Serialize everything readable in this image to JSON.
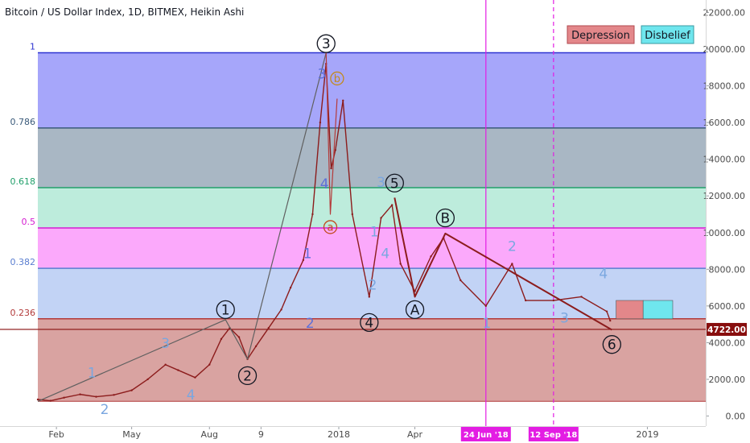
{
  "header": {
    "title": "Bitcoin / US Dollar Index, 1D, BITMEX, Heikin Ashi"
  },
  "legend": {
    "items": [
      {
        "label": "Depression",
        "color": "#e3878a",
        "border": "#b24a4f"
      },
      {
        "label": "Disbelief",
        "color": "#6fe6ee",
        "border": "#3a9aa0"
      }
    ]
  },
  "price_tag": {
    "label": "4722.00",
    "value": 4722,
    "color": "#880e0e"
  },
  "time_markers": [
    {
      "label": "24 Jun '18",
      "date": "2018-06-24",
      "style": "solid",
      "color": "#e31de3"
    },
    {
      "label": "12 Sep '18",
      "date": "2018-09-12",
      "style": "dashed",
      "color": "#e31de3"
    }
  ],
  "chart_data": {
    "type": "line",
    "title": "Bitcoin / US Dollar Index, 1D, BITMEX, Heikin Ashi",
    "xlabel": "",
    "ylabel": "",
    "grid": false,
    "ylim": [
      0,
      22000
    ],
    "xlim": [
      "2017-01-01",
      "2019-03-01"
    ],
    "y_ticks": [
      "22000.00",
      "20000.00",
      "18000.00",
      "16000.00",
      "14000.00",
      "12000.00",
      "10000.00",
      "8000.00",
      "6000.00",
      "4000.00",
      "2000.00",
      "0.00"
    ],
    "x_ticks": [
      {
        "label": "Feb",
        "date": "2017-02-01"
      },
      {
        "label": "May",
        "date": "2017-05-01"
      },
      {
        "label": "Aug",
        "date": "2017-08-01"
      },
      {
        "label": "9",
        "date": "2017-10-01"
      },
      {
        "label": "2018",
        "date": "2018-01-01"
      },
      {
        "label": "Apr",
        "date": "2018-04-01"
      },
      {
        "label": "2019",
        "date": "2019-01-01"
      }
    ],
    "fib_levels": [
      {
        "label": "1",
        "price": 19800,
        "color": "#2e34d1",
        "fill": "#a6a6fa"
      },
      {
        "label": "0.786",
        "price": 15700,
        "color": "#3a5a7a",
        "fill": "#a9b7c4"
      },
      {
        "label": "0.618",
        "price": 12450,
        "color": "#22a06b",
        "fill": "#bdecdc"
      },
      {
        "label": "0.5",
        "price": 10250,
        "color": "#d51dd1",
        "fill": "#fba9fb"
      },
      {
        "label": "0.382",
        "price": 8050,
        "color": "#5a7ed0",
        "fill": "#c2d3f5"
      },
      {
        "label": "0.236",
        "price": 5300,
        "color": "#b23a3a",
        "fill": "#d9a3a1"
      }
    ],
    "fib_floor": 800,
    "series": [
      {
        "name": "",
        "color": "#8c1c1c",
        "points": [
          [
            "2017-01-10",
            900
          ],
          [
            "2017-01-25",
            830
          ],
          [
            "2017-02-10",
            1000
          ],
          [
            "2017-03-01",
            1180
          ],
          [
            "2017-03-20",
            1050
          ],
          [
            "2017-04-10",
            1150
          ],
          [
            "2017-05-01",
            1400
          ],
          [
            "2017-05-20",
            2000
          ],
          [
            "2017-06-10",
            2800
          ],
          [
            "2017-06-25",
            2500
          ],
          [
            "2017-07-15",
            2100
          ],
          [
            "2017-08-01",
            2800
          ],
          [
            "2017-08-15",
            4200
          ],
          [
            "2017-08-25",
            4800
          ],
          [
            "2017-09-05",
            4300
          ],
          [
            "2017-09-15",
            3100
          ],
          [
            "2017-09-25",
            3800
          ],
          [
            "2017-10-10",
            4800
          ],
          [
            "2017-10-25",
            5800
          ],
          [
            "2017-11-05",
            7000
          ],
          [
            "2017-11-20",
            8500
          ],
          [
            "2017-12-01",
            11000
          ],
          [
            "2017-12-10",
            16000
          ],
          [
            "2017-12-17",
            19200
          ],
          [
            "2017-12-23",
            13500
          ],
          [
            "2017-12-28",
            14500
          ],
          [
            "2018-01-06",
            17200
          ],
          [
            "2018-01-17",
            11000
          ],
          [
            "2018-02-06",
            6500
          ],
          [
            "2018-02-20",
            10800
          ],
          [
            "2018-03-05",
            11500
          ],
          [
            "2018-03-15",
            8300
          ],
          [
            "2018-04-01",
            6800
          ],
          [
            "2018-04-20",
            8700
          ],
          [
            "2018-05-05",
            9700
          ],
          [
            "2018-05-25",
            7400
          ],
          [
            "2018-06-24",
            6000
          ],
          [
            "2018-07-25",
            8300
          ],
          [
            "2018-08-10",
            6300
          ],
          [
            "2018-09-12",
            6300
          ],
          [
            "2018-10-15",
            6500
          ],
          [
            "2018-11-14",
            5700
          ],
          [
            "2018-11-18",
            5200
          ]
        ]
      }
    ],
    "trend_lines": [
      {
        "color": "#606060",
        "points": [
          [
            "2017-01-10",
            800
          ],
          [
            "2017-08-20",
            5250
          ],
          [
            "2017-09-15",
            3100
          ],
          [
            "2017-12-17",
            19800
          ]
        ]
      },
      {
        "color": "#8c1c1c",
        "points": [
          [
            "2018-03-08",
            11900
          ],
          [
            "2018-04-01",
            6500
          ],
          [
            "2018-05-07",
            9950
          ],
          [
            "2018-11-20",
            4700
          ]
        ]
      },
      {
        "color": "#b53a3a",
        "points": [
          [
            "2017-12-17",
            19800
          ],
          [
            "2017-12-22",
            11000
          ],
          [
            "2017-12-30",
            17300
          ]
        ]
      }
    ],
    "wave_labels_circled": [
      {
        "text": "1",
        "date": "2017-08-20",
        "price": 5800,
        "color": "#131722"
      },
      {
        "text": "2",
        "date": "2017-09-15",
        "price": 2200,
        "color": "#131722"
      },
      {
        "text": "3",
        "date": "2017-12-17",
        "price": 20300,
        "color": "#131722"
      },
      {
        "text": "4",
        "date": "2018-02-06",
        "price": 5100,
        "color": "#131722"
      },
      {
        "text": "5",
        "date": "2018-03-08",
        "price": 12700,
        "color": "#131722"
      },
      {
        "text": "A",
        "date": "2018-04-01",
        "price": 5800,
        "color": "#131722"
      },
      {
        "text": "B",
        "date": "2018-05-07",
        "price": 10800,
        "color": "#131722"
      },
      {
        "text": "6",
        "date": "2018-11-20",
        "price": 3900,
        "color": "#131722"
      },
      {
        "text": "a",
        "date": "2017-12-22",
        "price": 10300,
        "color": "#c24a1c"
      },
      {
        "text": "b",
        "date": "2017-12-30",
        "price": 18400,
        "color": "#c28a1c"
      }
    ],
    "wave_labels": [
      {
        "text": "1",
        "date": "2017-03-15",
        "price": 2100,
        "color": "#7aa7e0"
      },
      {
        "text": "2",
        "date": "2017-03-30",
        "price": 100,
        "color": "#7aa7e0"
      },
      {
        "text": "3",
        "date": "2017-06-10",
        "price": 3700,
        "color": "#7aa7e0"
      },
      {
        "text": "4",
        "date": "2017-07-10",
        "price": 900,
        "color": "#7aa7e0"
      },
      {
        "text": "1",
        "date": "2017-11-25",
        "price": 8600,
        "color": "#5d6fd8"
      },
      {
        "text": "2",
        "date": "2017-11-28",
        "price": 4800,
        "color": "#5d6fd8"
      },
      {
        "text": "3",
        "date": "2017-12-12",
        "price": 18400,
        "color": "#5d6fd8"
      },
      {
        "text": "4",
        "date": "2017-12-15",
        "price": 12400,
        "color": "#5d6fd8"
      },
      {
        "text": "1",
        "date": "2018-02-12",
        "price": 9800,
        "color": "#7aa7e0"
      },
      {
        "text": "2",
        "date": "2018-02-10",
        "price": 6900,
        "color": "#7aa7e0"
      },
      {
        "text": "3",
        "date": "2018-02-20",
        "price": 12500,
        "color": "#7aa7e0"
      },
      {
        "text": "4",
        "date": "2018-02-25",
        "price": 8600,
        "color": "#7aa7e0"
      },
      {
        "text": "1",
        "date": "2018-06-25",
        "price": 4800,
        "color": "#7aa7e0"
      },
      {
        "text": "2",
        "date": "2018-07-25",
        "price": 9000,
        "color": "#7aa7e0"
      },
      {
        "text": "3",
        "date": "2018-09-25",
        "price": 5100,
        "color": "#7aa7e0"
      },
      {
        "text": "4",
        "date": "2018-11-10",
        "price": 7500,
        "color": "#7aa7e0"
      }
    ],
    "zones": [
      {
        "name": "Depression",
        "start": "2018-11-25",
        "end": "2018-12-27",
        "low": 5300,
        "high": 6300,
        "color": "#e3878a"
      },
      {
        "name": "Disbelief",
        "start": "2018-12-27",
        "end": "2019-01-31",
        "low": 5300,
        "high": 6300,
        "color": "#6fe6ee"
      }
    ]
  }
}
